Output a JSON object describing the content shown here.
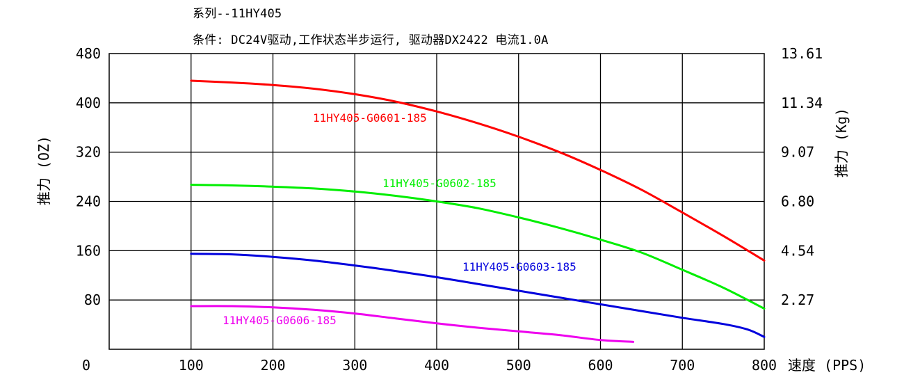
{
  "header": {
    "series_line": "系列--11HY405",
    "condition_line": "条件: DC24V驱动,工作状态半步运行, 驱动器DX2422 电流1.0A"
  },
  "chart_data": {
    "type": "line",
    "title": "系列--11HY405",
    "subtitle": "条件: DC24V驱动,工作状态半步运行, 驱动器DX2422 电流1.0A",
    "xlabel": "速度 (PPS)",
    "ylabel": "推力 (OZ)",
    "y2label": "推力 (Kg)",
    "xlim": [
      0,
      800
    ],
    "ylim": [
      0,
      480
    ],
    "grid": true,
    "legend": "none (inline labels)",
    "x_ticks": [
      "0",
      "100",
      "200",
      "300",
      "400",
      "500",
      "600",
      "700",
      "800"
    ],
    "y_ticks": [
      "80",
      "160",
      "240",
      "320",
      "400",
      "480"
    ],
    "y2_ticks": [
      "2.27",
      "4.54",
      "6.80",
      "9.07",
      "11.34",
      "13.61"
    ],
    "series": [
      {
        "name": "11HY405-G0601-185",
        "color": "#ff0000",
        "x": [
          100,
          150,
          200,
          250,
          300,
          350,
          400,
          450,
          500,
          550,
          600,
          650,
          700,
          750,
          800
        ],
        "y": [
          436,
          433,
          429,
          423,
          414,
          402,
          386,
          367,
          345,
          320,
          291,
          259,
          222,
          184,
          144
        ]
      },
      {
        "name": "11HY405-G0602-185",
        "color": "#00ee00",
        "x": [
          100,
          150,
          200,
          250,
          300,
          350,
          400,
          450,
          500,
          550,
          600,
          650,
          700,
          750,
          800
        ],
        "y": [
          267,
          266,
          264,
          261,
          256,
          249,
          240,
          229,
          214,
          197,
          178,
          157,
          129,
          100,
          66
        ]
      },
      {
        "name": "11HY405-G0603-185",
        "color": "#0000dd",
        "x": [
          100,
          150,
          200,
          250,
          300,
          350,
          400,
          450,
          500,
          550,
          600,
          650,
          700,
          750,
          780,
          800
        ],
        "y": [
          155,
          154,
          150,
          144,
          136,
          127,
          117,
          106,
          95,
          84,
          73,
          62,
          51,
          41,
          32,
          20
        ]
      },
      {
        "name": "11HY405-G0606-185",
        "color": "#ee00ee",
        "x": [
          100,
          150,
          200,
          250,
          300,
          350,
          400,
          450,
          500,
          550,
          600,
          640
        ],
        "y": [
          70,
          70,
          68,
          64,
          58,
          50,
          42,
          35,
          29,
          23,
          15,
          12
        ]
      }
    ]
  }
}
